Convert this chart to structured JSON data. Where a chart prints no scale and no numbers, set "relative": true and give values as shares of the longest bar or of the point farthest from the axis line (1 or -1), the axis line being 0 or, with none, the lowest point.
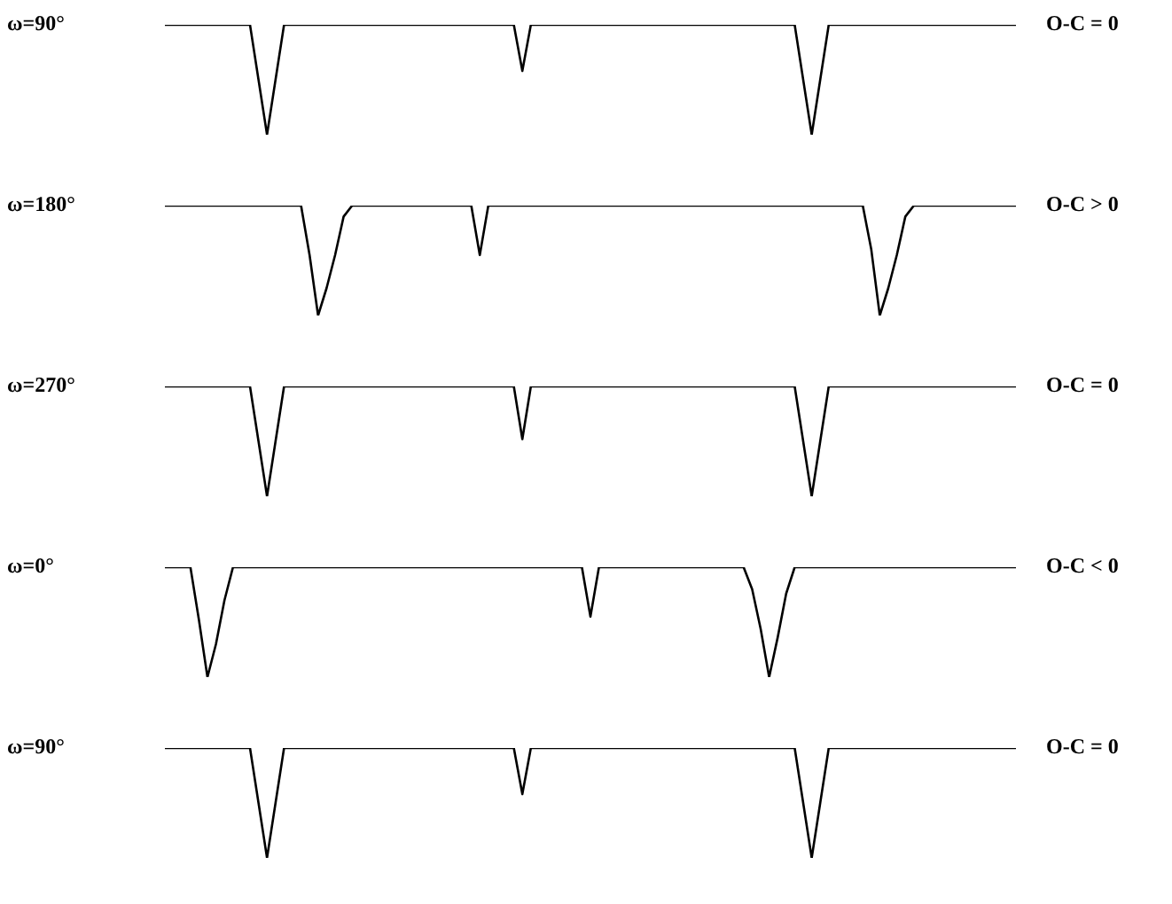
{
  "chart_data": [
    {
      "type": "line",
      "relative": true,
      "ylabel": "ω=90°",
      "annotations": [
        "O-C = 0"
      ],
      "color": "#000000",
      "marker": "none",
      "line_style": "solid",
      "categories": [
        null,
        null,
        null,
        null,
        null,
        null,
        null,
        null,
        null,
        null,
        null,
        null,
        null,
        null,
        null,
        null,
        null,
        null,
        null,
        null,
        null,
        null,
        null,
        null,
        null,
        null,
        null,
        null,
        null,
        null,
        null,
        null,
        null,
        null,
        null,
        null,
        null,
        null,
        null,
        null,
        null,
        null,
        null,
        null,
        null,
        null,
        null,
        null,
        null,
        null,
        null,
        null,
        null,
        null,
        null,
        null,
        null,
        null,
        null,
        null,
        null,
        null,
        null,
        null,
        null,
        null,
        null,
        null,
        null,
        null,
        null,
        null,
        null,
        null,
        null,
        null,
        null,
        null,
        null,
        null,
        null,
        null,
        null,
        null,
        null,
        null,
        null,
        null,
        null,
        null,
        null,
        null,
        null,
        null,
        null,
        null,
        null,
        null,
        null,
        null,
        null
      ],
      "values": [
        1,
        1,
        1,
        1,
        1,
        1,
        1,
        1,
        1,
        1,
        1,
        0.5,
        0,
        0.5,
        1,
        1,
        1,
        1,
        1,
        1,
        1,
        1,
        1,
        1,
        1,
        1,
        1,
        1,
        1,
        1,
        1,
        1,
        1,
        1,
        1,
        1,
        1,
        1,
        1,
        1,
        1,
        1,
        0.58,
        1,
        1,
        1,
        1,
        1,
        1,
        1,
        1,
        1,
        1,
        1,
        1,
        1,
        1,
        1,
        1,
        1,
        1,
        1,
        1,
        1,
        1,
        1,
        1,
        1,
        1,
        1,
        1,
        1,
        1,
        1,
        1,
        0.5,
        0,
        0.5,
        1,
        1,
        1,
        1,
        1,
        1,
        1,
        1,
        1,
        1,
        1,
        1,
        1,
        1,
        1,
        1,
        1,
        1,
        1,
        1,
        1,
        1,
        1
      ]
    },
    {
      "type": "line",
      "relative": true,
      "ylabel": "ω=180°",
      "annotations": [
        "O-C > 0"
      ],
      "color": "#000000",
      "marker": "none",
      "line_style": "solid",
      "categories": [
        null,
        null,
        null,
        null,
        null,
        null,
        null,
        null,
        null,
        null,
        null,
        null,
        null,
        null,
        null,
        null,
        null,
        null,
        null,
        null,
        null,
        null,
        null,
        null,
        null,
        null,
        null,
        null,
        null,
        null,
        null,
        null,
        null,
        null,
        null,
        null,
        null,
        null,
        null,
        null,
        null,
        null,
        null,
        null,
        null,
        null,
        null,
        null,
        null,
        null,
        null,
        null,
        null,
        null,
        null,
        null,
        null,
        null,
        null,
        null,
        null,
        null,
        null,
        null,
        null,
        null,
        null,
        null,
        null,
        null,
        null,
        null,
        null,
        null,
        null,
        null,
        null,
        null,
        null,
        null,
        null,
        null,
        null,
        null,
        null,
        null,
        null,
        null,
        null,
        null,
        null,
        null,
        null,
        null,
        null,
        null,
        null,
        null,
        null,
        null,
        null
      ],
      "values": [
        1,
        1,
        1,
        1,
        1,
        1,
        1,
        1,
        1,
        1,
        1,
        1,
        1,
        1,
        1,
        1,
        1,
        0.55,
        0,
        0.25,
        0.55,
        0.9,
        1,
        1,
        1,
        1,
        1,
        1,
        1,
        1,
        1,
        1,
        1,
        1,
        1,
        1,
        1,
        0.55,
        1,
        1,
        1,
        1,
        1,
        1,
        1,
        1,
        1,
        1,
        1,
        1,
        1,
        1,
        1,
        1,
        1,
        1,
        1,
        1,
        1,
        1,
        1,
        1,
        1,
        1,
        1,
        1,
        1,
        1,
        1,
        1,
        1,
        1,
        1,
        1,
        1,
        1,
        1,
        1,
        1,
        1,
        1,
        1,
        1,
        0.6,
        0,
        0.25,
        0.55,
        0.9,
        1,
        1,
        1,
        1,
        1,
        1,
        1,
        1,
        1,
        1,
        1,
        1,
        1
      ]
    },
    {
      "type": "line",
      "relative": true,
      "ylabel": "ω=270°",
      "annotations": [
        "O-C = 0"
      ],
      "color": "#000000",
      "marker": "none",
      "line_style": "solid",
      "categories": [
        null,
        null,
        null,
        null,
        null,
        null,
        null,
        null,
        null,
        null,
        null,
        null,
        null,
        null,
        null,
        null,
        null,
        null,
        null,
        null,
        null,
        null,
        null,
        null,
        null,
        null,
        null,
        null,
        null,
        null,
        null,
        null,
        null,
        null,
        null,
        null,
        null,
        null,
        null,
        null,
        null,
        null,
        null,
        null,
        null,
        null,
        null,
        null,
        null,
        null,
        null,
        null,
        null,
        null,
        null,
        null,
        null,
        null,
        null,
        null,
        null,
        null,
        null,
        null,
        null,
        null,
        null,
        null,
        null,
        null,
        null,
        null,
        null,
        null,
        null,
        null,
        null,
        null,
        null,
        null,
        null,
        null,
        null,
        null,
        null,
        null,
        null,
        null,
        null,
        null,
        null,
        null,
        null,
        null,
        null,
        null,
        null,
        null,
        null,
        null,
        null
      ],
      "values": [
        1,
        1,
        1,
        1,
        1,
        1,
        1,
        1,
        1,
        1,
        1,
        0.5,
        0,
        0.5,
        1,
        1,
        1,
        1,
        1,
        1,
        1,
        1,
        1,
        1,
        1,
        1,
        1,
        1,
        1,
        1,
        1,
        1,
        1,
        1,
        1,
        1,
        1,
        1,
        1,
        1,
        1,
        1,
        0.52,
        1,
        1,
        1,
        1,
        1,
        1,
        1,
        1,
        1,
        1,
        1,
        1,
        1,
        1,
        1,
        1,
        1,
        1,
        1,
        1,
        1,
        1,
        1,
        1,
        1,
        1,
        1,
        1,
        1,
        1,
        1,
        1,
        0.5,
        0,
        0.5,
        1,
        1,
        1,
        1,
        1,
        1,
        1,
        1,
        1,
        1,
        1,
        1,
        1,
        1,
        1,
        1,
        1,
        1,
        1,
        1,
        1,
        1,
        1
      ]
    },
    {
      "type": "line",
      "relative": true,
      "ylabel": "ω=0°",
      "annotations": [
        "O-C < 0"
      ],
      "color": "#000000",
      "marker": "none",
      "line_style": "solid",
      "categories": [
        null,
        null,
        null,
        null,
        null,
        null,
        null,
        null,
        null,
        null,
        null,
        null,
        null,
        null,
        null,
        null,
        null,
        null,
        null,
        null,
        null,
        null,
        null,
        null,
        null,
        null,
        null,
        null,
        null,
        null,
        null,
        null,
        null,
        null,
        null,
        null,
        null,
        null,
        null,
        null,
        null,
        null,
        null,
        null,
        null,
        null,
        null,
        null,
        null,
        null,
        null,
        null,
        null,
        null,
        null,
        null,
        null,
        null,
        null,
        null,
        null,
        null,
        null,
        null,
        null,
        null,
        null,
        null,
        null,
        null,
        null,
        null,
        null,
        null,
        null,
        null,
        null,
        null,
        null,
        null,
        null,
        null,
        null,
        null,
        null,
        null,
        null,
        null,
        null,
        null,
        null,
        null,
        null,
        null,
        null,
        null,
        null,
        null,
        null,
        null,
        null
      ],
      "values": [
        1,
        1,
        1,
        1,
        0.52,
        0,
        0.3,
        0.7,
        1,
        1,
        1,
        1,
        1,
        1,
        1,
        1,
        1,
        1,
        1,
        1,
        1,
        1,
        1,
        1,
        1,
        1,
        1,
        1,
        1,
        1,
        1,
        1,
        1,
        1,
        1,
        1,
        1,
        1,
        1,
        1,
        1,
        1,
        1,
        1,
        1,
        1,
        1,
        1,
        1,
        1,
        0.55,
        1,
        1,
        1,
        1,
        1,
        1,
        1,
        1,
        1,
        1,
        1,
        1,
        1,
        1,
        1,
        1,
        1,
        1,
        0.8,
        0.44,
        0,
        0.36,
        0.76,
        1,
        1,
        1,
        1,
        1,
        1,
        1,
        1,
        1,
        1,
        1,
        1,
        1,
        1,
        1,
        1,
        1,
        1,
        1,
        1,
        1,
        1,
        1,
        1,
        1,
        1,
        1
      ]
    },
    {
      "type": "line",
      "relative": true,
      "ylabel": "ω=90°",
      "annotations": [
        "O-C = 0"
      ],
      "color": "#000000",
      "marker": "none",
      "line_style": "solid",
      "categories": [
        null,
        null,
        null,
        null,
        null,
        null,
        null,
        null,
        null,
        null,
        null,
        null,
        null,
        null,
        null,
        null,
        null,
        null,
        null,
        null,
        null,
        null,
        null,
        null,
        null,
        null,
        null,
        null,
        null,
        null,
        null,
        null,
        null,
        null,
        null,
        null,
        null,
        null,
        null,
        null,
        null,
        null,
        null,
        null,
        null,
        null,
        null,
        null,
        null,
        null,
        null,
        null,
        null,
        null,
        null,
        null,
        null,
        null,
        null,
        null,
        null,
        null,
        null,
        null,
        null,
        null,
        null,
        null,
        null,
        null,
        null,
        null,
        null,
        null,
        null,
        null,
        null,
        null,
        null,
        null,
        null,
        null,
        null,
        null,
        null,
        null,
        null,
        null,
        null,
        null,
        null,
        null,
        null,
        null,
        null,
        null,
        null,
        null,
        null,
        null,
        null
      ],
      "values": [
        1,
        1,
        1,
        1,
        1,
        1,
        1,
        1,
        1,
        1,
        1,
        0.5,
        0,
        0.5,
        1,
        1,
        1,
        1,
        1,
        1,
        1,
        1,
        1,
        1,
        1,
        1,
        1,
        1,
        1,
        1,
        1,
        1,
        1,
        1,
        1,
        1,
        1,
        1,
        1,
        1,
        1,
        1,
        0.58,
        1,
        1,
        1,
        1,
        1,
        1,
        1,
        1,
        1,
        1,
        1,
        1,
        1,
        1,
        1,
        1,
        1,
        1,
        1,
        1,
        1,
        1,
        1,
        1,
        1,
        1,
        1,
        1,
        1,
        1,
        1,
        1,
        0.5,
        0,
        0.5,
        1,
        1,
        1,
        1,
        1,
        1,
        1,
        1,
        1,
        1,
        1,
        1,
        1,
        1,
        1,
        1,
        1,
        1,
        1,
        1,
        1,
        1,
        1
      ]
    }
  ]
}
